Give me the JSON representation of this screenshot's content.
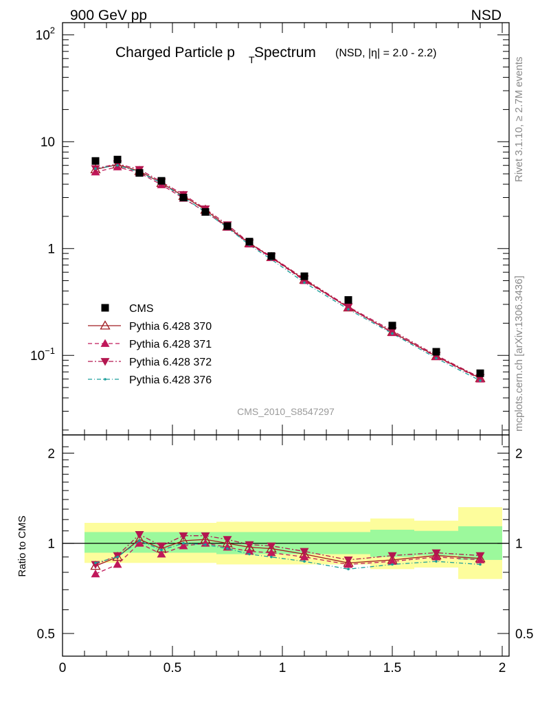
{
  "header": {
    "left": "900 GeV pp",
    "right": "NSD"
  },
  "side_labels": {
    "rivet": "Rivet 3.1.10, ≥ 2.7M events",
    "mcplots": "mcplots.cern.ch [arXiv:1306.3436]"
  },
  "watermark": "CMS_2010_S8547297",
  "chart_data": [
    {
      "type": "line",
      "title_main": "Charged Particle p",
      "title_sub": "T",
      "title_tail": " Spectrum",
      "title_extra": "(NSD, |η| = 2.0 - 2.2)",
      "xlim": [
        0,
        2
      ],
      "ylim": [
        0.018,
        130
      ],
      "yscale": "log",
      "y_ticks": [
        {
          "value": 0.1,
          "base": "10",
          "exp": "−1"
        },
        {
          "value": 1,
          "base": "1",
          "exp": ""
        },
        {
          "value": 10,
          "base": "10",
          "exp": ""
        },
        {
          "value": 100,
          "base": "10",
          "exp": "2"
        }
      ],
      "x": [
        0.15,
        0.25,
        0.35,
        0.45,
        0.55,
        0.65,
        0.75,
        0.85,
        0.95,
        1.1,
        1.3,
        1.5,
        1.7,
        1.9
      ],
      "x_edges": [
        [
          0.1,
          0.2
        ],
        [
          0.2,
          0.3
        ],
        [
          0.3,
          0.4
        ],
        [
          0.4,
          0.5
        ],
        [
          0.5,
          0.6
        ],
        [
          0.6,
          0.7
        ],
        [
          0.7,
          0.8
        ],
        [
          0.8,
          0.9
        ],
        [
          0.9,
          1.0
        ],
        [
          1.0,
          1.2
        ],
        [
          1.2,
          1.4
        ],
        [
          1.4,
          1.6
        ],
        [
          1.6,
          1.8
        ],
        [
          1.8,
          2.0
        ]
      ],
      "legend_position": "bottom-left",
      "series": [
        {
          "name": "CMS",
          "style": "data",
          "color": "#000000",
          "values": [
            6.6,
            6.8,
            5.1,
            4.3,
            3.0,
            2.2,
            1.62,
            1.16,
            0.85,
            0.55,
            0.33,
            0.19,
            0.108,
            0.068
          ]
        },
        {
          "name": "Pythia 6.428 370",
          "style": "open-triangle-up",
          "dash": "",
          "color": "#a01c22",
          "values": [
            5.5,
            6.1,
            5.3,
            4.1,
            3.1,
            2.3,
            1.6,
            1.12,
            0.83,
            0.51,
            0.28,
            0.165,
            0.098,
            0.061
          ]
        },
        {
          "name": "Pythia 6.428 371",
          "style": "filled-triangle-up",
          "dash": "6,4",
          "color": "#c0185a",
          "values": [
            5.2,
            5.8,
            5.1,
            3.95,
            2.95,
            2.2,
            1.58,
            1.1,
            0.82,
            0.5,
            0.28,
            0.163,
            0.097,
            0.06
          ]
        },
        {
          "name": "Pythia 6.428 372",
          "style": "filled-triangle-down",
          "dash": "7,3,2,3",
          "color": "#b3164f",
          "values": [
            5.6,
            6.2,
            5.5,
            4.2,
            3.2,
            2.35,
            1.67,
            1.13,
            0.84,
            0.52,
            0.285,
            0.17,
            0.1,
            0.062
          ]
        },
        {
          "name": "Pythia 6.428 376",
          "style": "dot",
          "dash": "6,3,1,3",
          "color": "#1a9e9a",
          "values": [
            5.6,
            6.0,
            5.2,
            4.1,
            3.0,
            2.2,
            1.57,
            1.08,
            0.79,
            0.48,
            0.27,
            0.16,
            0.094,
            0.058
          ]
        }
      ]
    },
    {
      "type": "line",
      "ylabel": "Ratio to CMS",
      "xlim": [
        0,
        2
      ],
      "ylim": [
        0.42,
        2.3
      ],
      "yscale": "log",
      "x_tick_labels": [
        {
          "value": 0,
          "label": "0"
        },
        {
          "value": 0.5,
          "label": "0.5"
        },
        {
          "value": 1,
          "label": "1"
        },
        {
          "value": 1.5,
          "label": "1.5"
        },
        {
          "value": 2,
          "label": "2"
        }
      ],
      "y_tick_labels": [
        {
          "value": 0.5,
          "label": "0.5"
        },
        {
          "value": 1,
          "label": "1"
        },
        {
          "value": 2,
          "label": "2"
        }
      ],
      "bands": {
        "x_edges": [
          [
            0.1,
            0.2
          ],
          [
            0.2,
            0.3
          ],
          [
            0.3,
            0.4
          ],
          [
            0.4,
            0.5
          ],
          [
            0.5,
            0.6
          ],
          [
            0.6,
            0.7
          ],
          [
            0.7,
            0.8
          ],
          [
            0.8,
            0.9
          ],
          [
            0.9,
            1.0
          ],
          [
            1.0,
            1.2
          ],
          [
            1.2,
            1.4
          ],
          [
            1.4,
            1.6
          ],
          [
            1.6,
            1.8
          ],
          [
            1.8,
            2.0
          ]
        ],
        "stat_low": [
          0.93,
          0.93,
          0.93,
          0.93,
          0.93,
          0.93,
          0.92,
          0.92,
          0.92,
          0.92,
          0.92,
          0.9,
          0.91,
          0.88
        ],
        "stat_high": [
          1.09,
          1.09,
          1.09,
          1.09,
          1.09,
          1.09,
          1.09,
          1.09,
          1.09,
          1.09,
          1.09,
          1.11,
          1.1,
          1.14
        ],
        "total_low": [
          0.86,
          0.86,
          0.86,
          0.86,
          0.86,
          0.86,
          0.85,
          0.85,
          0.85,
          0.85,
          0.85,
          0.82,
          0.83,
          0.76
        ],
        "total_high": [
          1.17,
          1.17,
          1.17,
          1.17,
          1.17,
          1.17,
          1.18,
          1.18,
          1.18,
          1.18,
          1.18,
          1.21,
          1.19,
          1.32
        ],
        "stat_color": "#9cf99c",
        "total_color": "#fdfd9c"
      },
      "series": [
        {
          "name": "Pythia 6.428 370",
          "color": "#a01c22",
          "values": [
            0.84,
            0.9,
            1.03,
            0.96,
            1.02,
            1.03,
            1.0,
            0.97,
            0.96,
            0.92,
            0.86,
            0.88,
            0.91,
            0.89
          ]
        },
        {
          "name": "Pythia 6.428 371",
          "color": "#c0185a",
          "values": [
            0.79,
            0.85,
            1.0,
            0.92,
            0.98,
            1.0,
            0.97,
            0.94,
            0.93,
            0.9,
            0.85,
            0.87,
            0.9,
            0.88
          ]
        },
        {
          "name": "Pythia 6.428 372",
          "color": "#b3164f",
          "values": [
            0.85,
            0.91,
            1.07,
            0.98,
            1.06,
            1.06,
            1.03,
            0.99,
            0.98,
            0.94,
            0.88,
            0.91,
            0.93,
            0.91
          ]
        },
        {
          "name": "Pythia 6.428 376",
          "color": "#1a9e9a",
          "values": [
            0.86,
            0.9,
            1.02,
            0.95,
            1.0,
            0.99,
            0.96,
            0.92,
            0.9,
            0.87,
            0.82,
            0.85,
            0.87,
            0.85
          ]
        }
      ]
    }
  ]
}
